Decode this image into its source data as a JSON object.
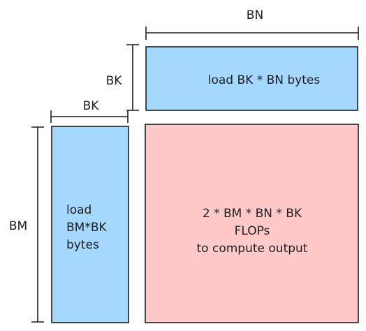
{
  "dimensions": {
    "bn": "BN",
    "bk_top": "BK",
    "bk_left": "BK",
    "bm": "BM"
  },
  "boxes": {
    "b_tile": {
      "lines": [
        "load BK * BN bytes"
      ]
    },
    "a_tile": {
      "lines": [
        "load",
        "BM*BK",
        "bytes"
      ]
    },
    "output": {
      "lines": [
        "2 * BM  * BN * BK",
        "FLOPs",
        "to compute output"
      ]
    }
  },
  "colors": {
    "blue_fill": "#a5d8ff",
    "red_fill": "#ffc9c9",
    "stroke": "#1e1e1e"
  }
}
